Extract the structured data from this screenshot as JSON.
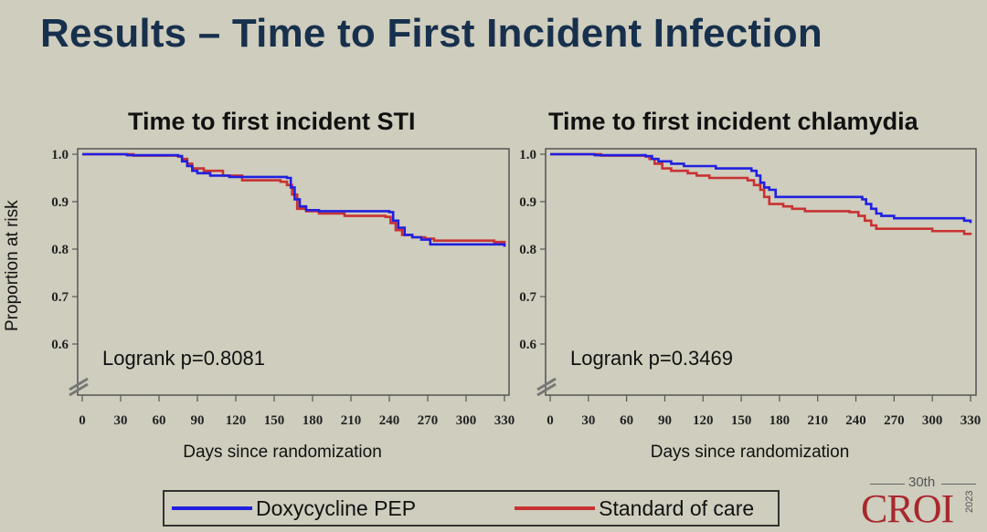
{
  "slide": {
    "title": "Results – Time to First Incident Infection",
    "ylabel": "Proportion at risk"
  },
  "legend": {
    "items": [
      {
        "name": "Doxycycline PEP",
        "color": "#2020e0"
      },
      {
        "name": "Standard of care",
        "color": "#c83232"
      }
    ]
  },
  "logo": {
    "superscript": "30th",
    "text": "CROI",
    "year": "2023"
  },
  "chart_data": [
    {
      "type": "line",
      "step": true,
      "title": "Time to first incident STI",
      "xlabel": "Days since randomization",
      "ylabel": "Proportion at risk",
      "xlim": [
        0,
        330
      ],
      "ylim": [
        0.5,
        1.0
      ],
      "x_ticks": [
        0,
        30,
        60,
        90,
        120,
        150,
        180,
        210,
        240,
        270,
        300,
        330
      ],
      "y_ticks": [
        1.0,
        0.9,
        0.8,
        0.7,
        0.6
      ],
      "y_tick_labels": [
        "1.0",
        "0.9",
        "0.8",
        "0.7",
        "0.6"
      ],
      "axis_break": true,
      "grid": false,
      "annotation": "Logrank p=0.8081",
      "series": [
        {
          "name": "Doxycycline PEP",
          "color": "#2020e0",
          "x": [
            0,
            35,
            45,
            75,
            78,
            82,
            86,
            90,
            100,
            115,
            160,
            163,
            166,
            170,
            175,
            185,
            240,
            243,
            247,
            252,
            258,
            265,
            272,
            325,
            330
          ],
          "y": [
            1.0,
            0.998,
            0.998,
            0.996,
            0.985,
            0.975,
            0.965,
            0.96,
            0.955,
            0.952,
            0.95,
            0.93,
            0.905,
            0.89,
            0.882,
            0.88,
            0.878,
            0.86,
            0.845,
            0.83,
            0.825,
            0.82,
            0.81,
            0.81,
            0.805
          ]
        },
        {
          "name": "Standard of care",
          "color": "#c83232",
          "x": [
            0,
            40,
            75,
            78,
            82,
            86,
            95,
            110,
            125,
            155,
            160,
            164,
            168,
            175,
            185,
            205,
            237,
            241,
            245,
            250,
            258,
            268,
            275,
            322,
            330
          ],
          "y": [
            1.0,
            0.997,
            0.995,
            0.99,
            0.98,
            0.97,
            0.965,
            0.955,
            0.945,
            0.942,
            0.935,
            0.915,
            0.885,
            0.88,
            0.875,
            0.87,
            0.868,
            0.855,
            0.84,
            0.83,
            0.825,
            0.822,
            0.818,
            0.815,
            0.805
          ]
        }
      ]
    },
    {
      "type": "line",
      "step": true,
      "title": "Time to first incident chlamydia",
      "xlabel": "Days since randomization",
      "ylabel": "Proportion at risk",
      "xlim": [
        0,
        330
      ],
      "ylim": [
        0.5,
        1.0
      ],
      "x_ticks": [
        0,
        30,
        60,
        90,
        120,
        150,
        180,
        210,
        240,
        270,
        300,
        330
      ],
      "y_ticks": [
        1.0,
        0.9,
        0.8,
        0.7,
        0.6
      ],
      "y_tick_labels": [
        "1.0",
        "0.9",
        "0.8",
        "0.7",
        "0.6"
      ],
      "axis_break": true,
      "grid": false,
      "annotation": "Logrank p=0.3469",
      "series": [
        {
          "name": "Doxycycline PEP",
          "color": "#2020e0",
          "x": [
            0,
            35,
            45,
            75,
            80,
            85,
            95,
            105,
            130,
            158,
            162,
            165,
            168,
            172,
            177,
            245,
            248,
            252,
            256,
            260,
            270,
            325,
            330
          ],
          "y": [
            1.0,
            0.998,
            0.998,
            0.996,
            0.99,
            0.985,
            0.98,
            0.975,
            0.97,
            0.965,
            0.955,
            0.94,
            0.93,
            0.925,
            0.91,
            0.905,
            0.895,
            0.885,
            0.875,
            0.87,
            0.865,
            0.86,
            0.855
          ]
        },
        {
          "name": "Standard of care",
          "color": "#c83232",
          "x": [
            0,
            40,
            75,
            78,
            82,
            88,
            95,
            108,
            115,
            125,
            155,
            160,
            165,
            168,
            172,
            183,
            190,
            200,
            235,
            242,
            247,
            252,
            256,
            300,
            325,
            330
          ],
          "y": [
            1.0,
            0.997,
            0.995,
            0.99,
            0.98,
            0.97,
            0.965,
            0.96,
            0.955,
            0.95,
            0.945,
            0.935,
            0.925,
            0.91,
            0.895,
            0.89,
            0.885,
            0.88,
            0.878,
            0.87,
            0.86,
            0.85,
            0.843,
            0.838,
            0.832,
            0.83
          ]
        }
      ]
    }
  ]
}
